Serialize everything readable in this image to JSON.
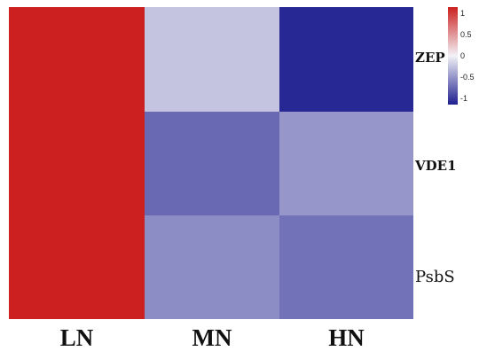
{
  "chart_data": {
    "type": "heatmap",
    "columns": [
      "LN",
      "MN",
      "HN"
    ],
    "rows": [
      "ZEP",
      "VDE1",
      "PsbS"
    ],
    "values": [
      [
        1.15,
        -0.25,
        -1.1
      ],
      [
        1.15,
        -0.75,
        -0.5
      ],
      [
        1.15,
        -0.55,
        -0.7
      ]
    ],
    "color_scale": {
      "min": -1.15,
      "max": 1.15,
      "low_color": "#1f1f8f",
      "mid_color": "#f2f2f7",
      "high_color": "#cc2020",
      "ticks": [
        {
          "value": 1,
          "label": "1"
        },
        {
          "value": 0.5,
          "label": "0.5"
        },
        {
          "value": 0,
          "label": "0"
        },
        {
          "value": -0.5,
          "label": "-0.5"
        },
        {
          "value": -1,
          "label": "-1"
        }
      ]
    },
    "legend_position": "top-right"
  }
}
